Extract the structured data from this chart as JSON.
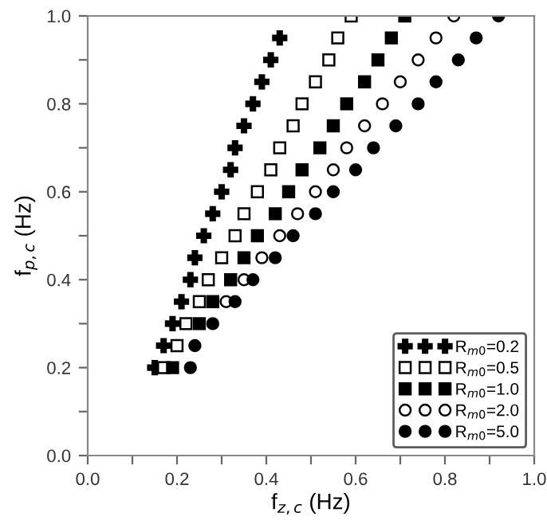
{
  "chart_data": {
    "type": "scatter",
    "xlabel": "f$_{z,c}$ (Hz)",
    "ylabel": "f$_{p,c}$ (Hz)",
    "xlim": [
      0,
      1.0
    ],
    "ylim": [
      0,
      1.0
    ],
    "xticks": [
      {
        "value": 0,
        "label": "0.0"
      },
      {
        "value": 0.1,
        "label": null
      },
      0.2,
      {
        "value": 0.3,
        "label": null
      },
      0.4,
      {
        "value": 0.5,
        "label": null
      },
      0.6,
      {
        "value": 0.7,
        "label": null
      },
      0.8,
      {
        "value": 0.9,
        "label": null
      },
      {
        "value": 1,
        "label": "1.0"
      }
    ],
    "yticks": [
      {
        "value": 0,
        "label": "0.0"
      },
      {
        "value": 0.1,
        "label": null
      },
      0.2,
      {
        "value": 0.3,
        "label": null
      },
      0.4,
      {
        "value": 0.5,
        "label": null
      },
      0.6,
      {
        "value": 0.7,
        "label": null
      },
      0.8,
      {
        "value": 0.9,
        "label": null
      },
      {
        "value": 1,
        "label": "1.0"
      }
    ],
    "grid": false,
    "legend": "bottom right",
    "series": [
      {
        "name": "R$_{m0}$=0.2",
        "marker": "cross",
        "color": "#000000",
        "x": [
          0.15,
          0.17,
          0.19,
          0.21,
          0.23,
          0.24,
          0.26,
          0.28,
          0.3,
          0.32,
          0.33,
          0.35,
          0.37,
          0.39,
          0.41,
          0.43
        ],
        "values": [
          0.2,
          0.25,
          0.3,
          0.35,
          0.4,
          0.45,
          0.5,
          0.55,
          0.6,
          0.65,
          0.7,
          0.75,
          0.8,
          0.85,
          0.9,
          0.95
        ]
      },
      {
        "name": "R$_{m0}$=0.5",
        "marker": "square",
        "color": "#ffffff",
        "x": [
          0.17,
          0.2,
          0.22,
          0.25,
          0.27,
          0.3,
          0.33,
          0.35,
          0.38,
          0.41,
          0.43,
          0.46,
          0.48,
          0.51,
          0.54,
          0.56,
          0.59
        ],
        "values": [
          0.2,
          0.25,
          0.3,
          0.35,
          0.4,
          0.45,
          0.5,
          0.55,
          0.6,
          0.65,
          0.7,
          0.75,
          0.8,
          0.85,
          0.9,
          0.95,
          1.0
        ]
      },
      {
        "name": "R$_{m0}$=1.0",
        "marker": "square",
        "color": "#000000",
        "x": [
          0.19,
          0.25,
          0.28,
          0.32,
          0.35,
          0.38,
          0.42,
          0.45,
          0.48,
          0.52,
          0.55,
          0.58,
          0.62,
          0.65,
          0.68,
          0.71
        ],
        "values": [
          0.2,
          0.3,
          0.35,
          0.4,
          0.45,
          0.5,
          0.55,
          0.6,
          0.65,
          0.7,
          0.75,
          0.8,
          0.85,
          0.9,
          0.95,
          1.0
        ]
      },
      {
        "name": "R$_{m0}$=2.0",
        "marker": "circle",
        "color": "#ffffff",
        "x": [
          0.31,
          0.35,
          0.39,
          0.43,
          0.47,
          0.51,
          0.55,
          0.58,
          0.62,
          0.66,
          0.7,
          0.74,
          0.78,
          0.82
        ],
        "values": [
          0.35,
          0.4,
          0.45,
          0.5,
          0.55,
          0.6,
          0.65,
          0.7,
          0.75,
          0.8,
          0.85,
          0.9,
          0.95,
          1.0
        ]
      },
      {
        "name": "R$_{m0}$=5.0",
        "marker": "circle",
        "color": "#000000",
        "x": [
          0.23,
          0.24,
          0.28,
          0.33,
          0.37,
          0.42,
          0.46,
          0.51,
          0.55,
          0.6,
          0.64,
          0.69,
          0.74,
          0.78,
          0.83,
          0.87,
          0.92
        ],
        "values": [
          0.2,
          0.25,
          0.3,
          0.35,
          0.4,
          0.45,
          0.5,
          0.55,
          0.6,
          0.65,
          0.7,
          0.75,
          0.8,
          0.85,
          0.9,
          0.95,
          1.0
        ]
      }
    ]
  }
}
